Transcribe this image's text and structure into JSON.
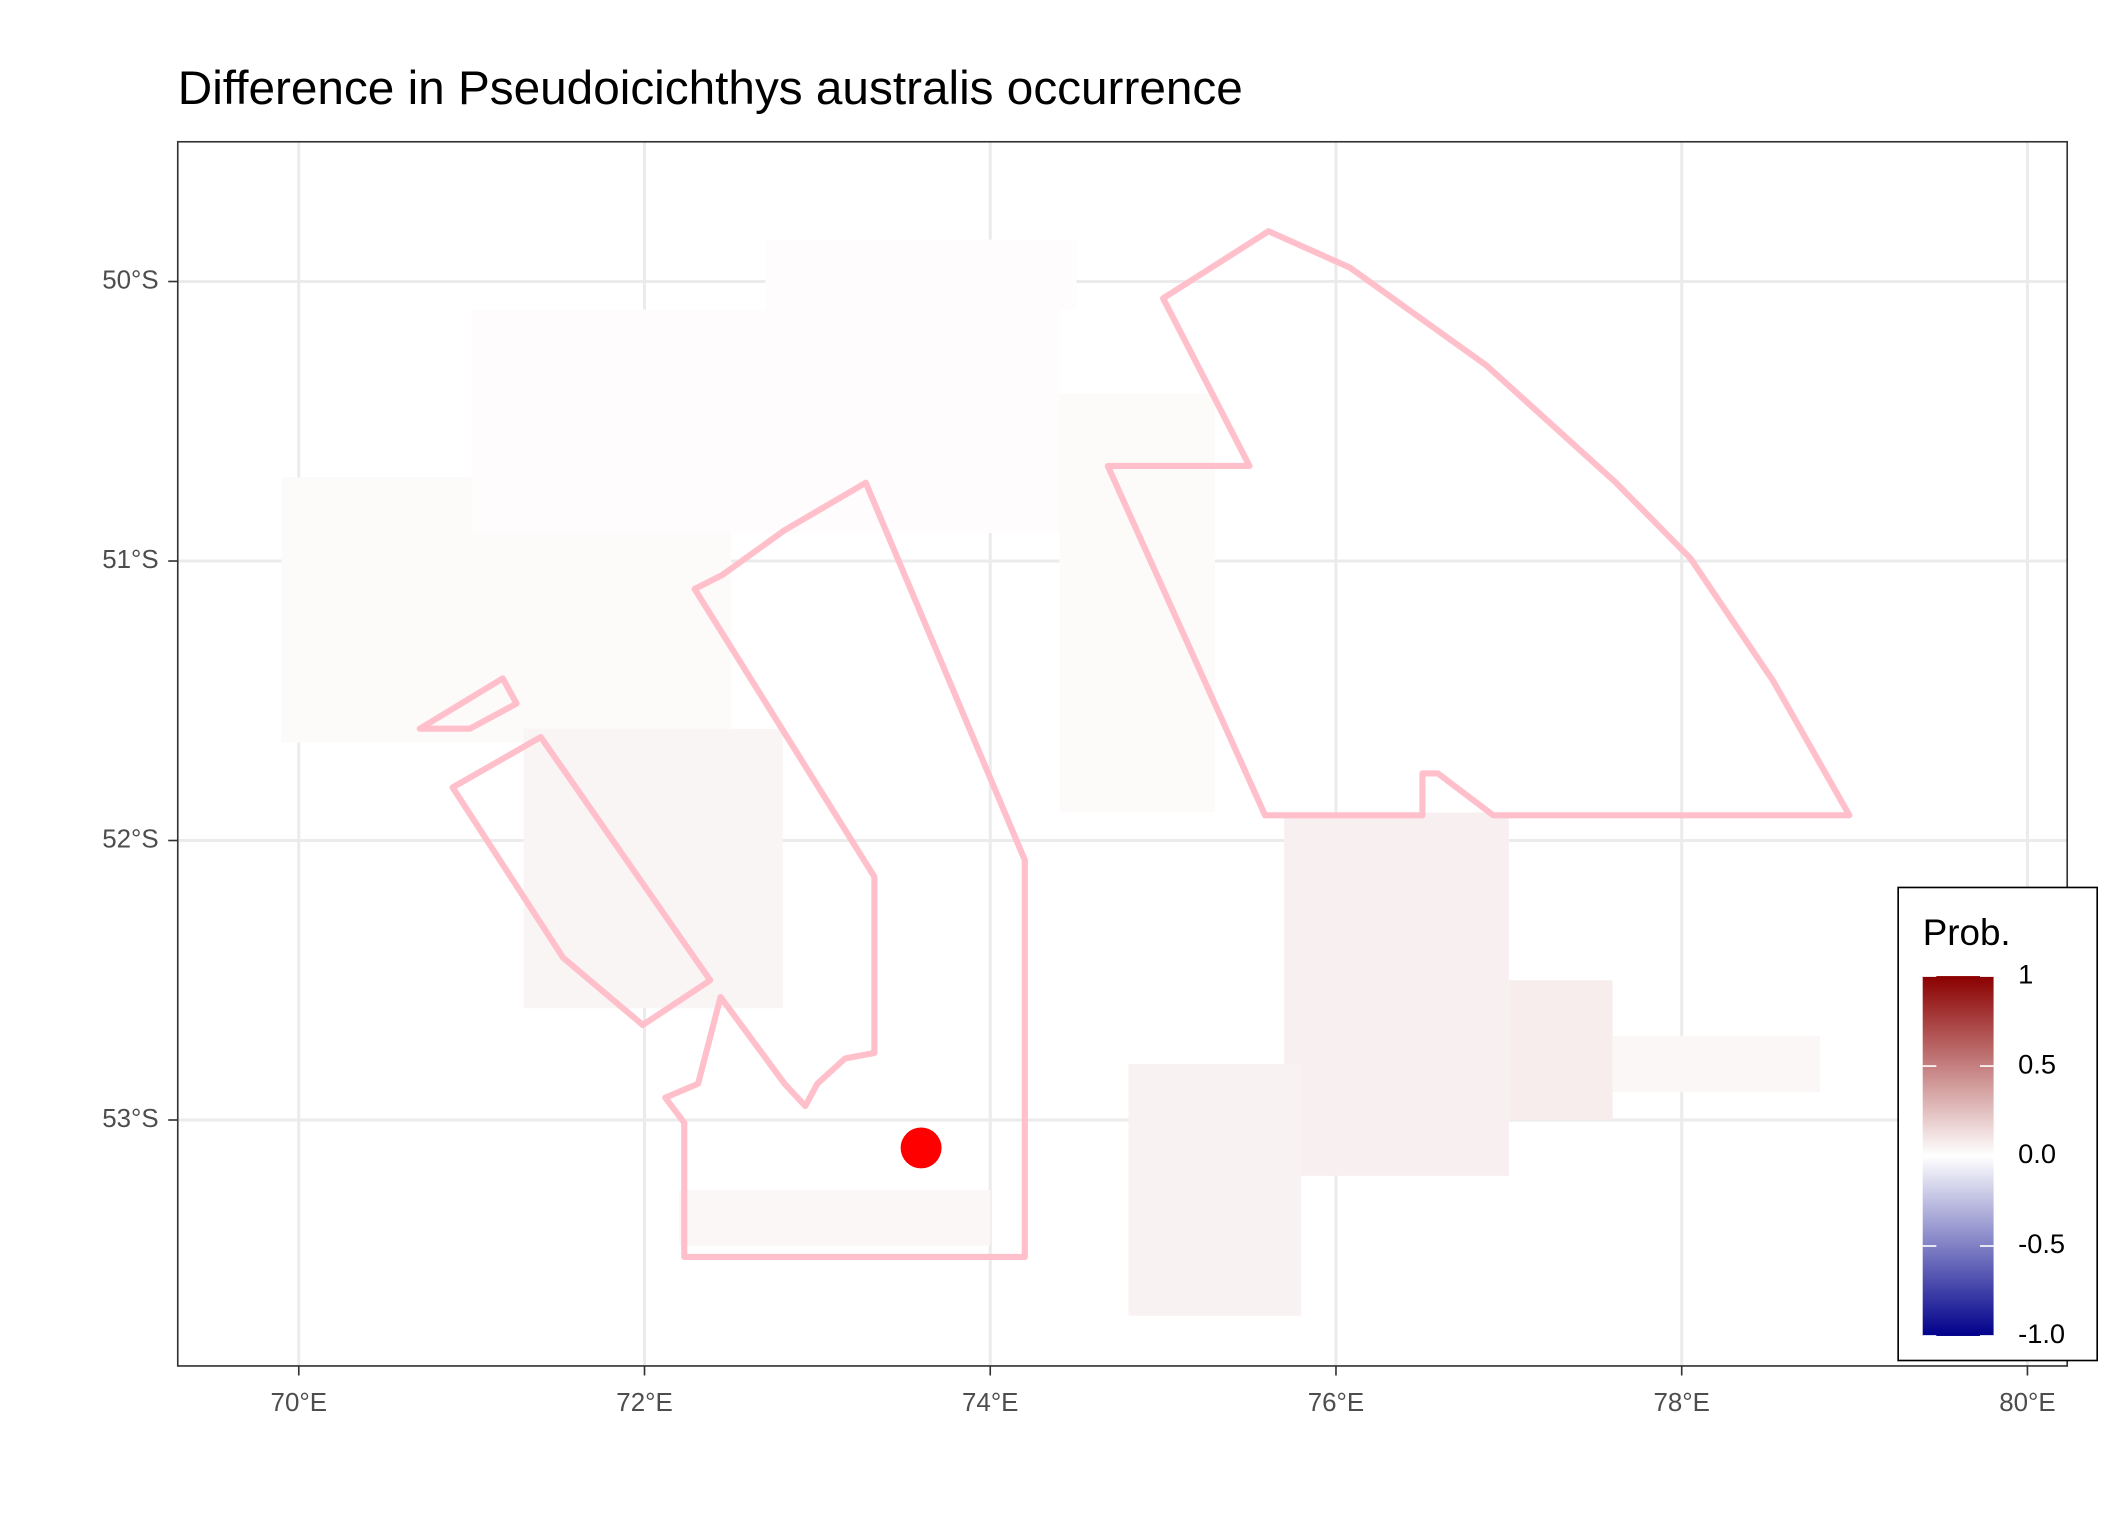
{
  "chart_data": {
    "type": "map",
    "title": "Difference in  Pseudoicichthys australis occurrence",
    "xlim": [
      69.3,
      80.23
    ],
    "ylim": [
      -53.88,
      -49.5
    ],
    "xticks": [
      {
        "value": 70,
        "label": "70°E"
      },
      {
        "value": 72,
        "label": "72°E"
      },
      {
        "value": 74,
        "label": "74°E"
      },
      {
        "value": 76,
        "label": "76°E"
      },
      {
        "value": 78,
        "label": "78°E"
      },
      {
        "value": 80,
        "label": "80°E"
      }
    ],
    "yticks": [
      {
        "value": -50,
        "label": "50°S"
      },
      {
        "value": -51,
        "label": "51°S"
      },
      {
        "value": -52,
        "label": "52°S"
      },
      {
        "value": -53,
        "label": "53°S"
      }
    ],
    "grid": true,
    "raster": [
      {
        "lon": [
          69.9,
          72.5
        ],
        "lat": [
          -50.7,
          -51.65
        ],
        "value": 0.02
      },
      {
        "lon": [
          71.0,
          74.4
        ],
        "lat": [
          -50.1,
          -50.9
        ],
        "value": 0.01
      },
      {
        "lon": [
          72.7,
          74.5
        ],
        "lat": [
          -49.85,
          -50.1
        ],
        "value": 0.01
      },
      {
        "lon": [
          74.4,
          75.3
        ],
        "lat": [
          -50.4,
          -51.9
        ],
        "value": 0.02
      },
      {
        "lon": [
          71.3,
          72.8
        ],
        "lat": [
          -51.6,
          -52.6
        ],
        "value": 0.04
      },
      {
        "lon": [
          75.7,
          77.0
        ],
        "lat": [
          -51.9,
          -53.2
        ],
        "value": 0.06
      },
      {
        "lon": [
          77.0,
          77.6
        ],
        "lat": [
          -52.5,
          -53.0
        ],
        "value": 0.07
      },
      {
        "lon": [
          74.8,
          75.8
        ],
        "lat": [
          -52.8,
          -53.7
        ],
        "value": 0.05
      },
      {
        "lon": [
          72.2,
          74.0
        ],
        "lat": [
          -53.25,
          -53.45
        ],
        "value": 0.03
      },
      {
        "lon": [
          77.6,
          78.8
        ],
        "lat": [
          -52.7,
          -52.9
        ],
        "value": 0.03
      }
    ],
    "polygon_color": "#ffc0cb",
    "polygons": [
      {
        "lon": [
          75.0,
          75.61,
          76.08,
          76.87,
          77.62,
          78.05,
          78.53,
          78.97,
          76.91,
          76.59,
          76.5,
          76.5,
          75.59,
          74.68,
          75.5
        ],
        "lat": [
          -50.06,
          -49.82,
          -49.95,
          -50.3,
          -50.72,
          -50.99,
          -51.43,
          -51.91,
          -51.91,
          -51.76,
          -51.76,
          -51.91,
          -51.91,
          -50.66,
          -50.66
        ]
      },
      {
        "lon": [
          72.29,
          72.45,
          72.81,
          73.28,
          74.2,
          74.2,
          72.23,
          72.23,
          72.12,
          72.31,
          72.44,
          72.81,
          72.93,
          73.0,
          73.16,
          73.33,
          73.33
        ],
        "lat": [
          -51.1,
          -51.05,
          -50.89,
          -50.72,
          -52.07,
          -53.49,
          -53.49,
          -53.01,
          -52.92,
          -52.87,
          -52.56,
          -52.87,
          -52.95,
          -52.87,
          -52.78,
          -52.76,
          -52.13
        ]
      },
      {
        "lon": [
          70.89,
          71.4,
          72.38,
          71.99,
          71.53
        ],
        "lat": [
          -51.81,
          -51.63,
          -52.5,
          -52.66,
          -52.42
        ]
      },
      {
        "lon": [
          70.7,
          71.18,
          71.26,
          70.99
        ],
        "lat": [
          -51.6,
          -51.42,
          -51.51,
          -51.6
        ]
      }
    ],
    "points": {
      "lon": 73.6,
      "lat": -53.1,
      "color": "#ff0000"
    },
    "legend_title": "Prob.",
    "legend_limits": [
      -1,
      1
    ],
    "legend_colors": {
      "low": "#00008b",
      "mid": "#ffffff",
      "high": "#8b0000"
    },
    "legend_ticks": [
      1,
      0.5,
      {
        "value": 0,
        "label": "0.0"
      },
      -0.5,
      {
        "value": -1,
        "label": "-1.0"
      }
    ]
  }
}
